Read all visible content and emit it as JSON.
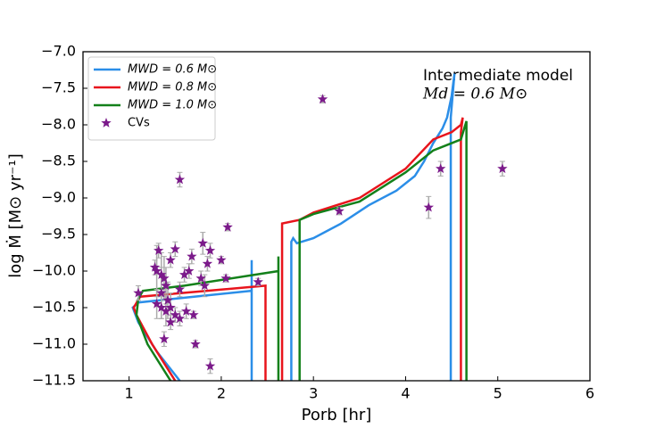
{
  "chart_data": {
    "type": "line",
    "xlabel": "Porb [hr]",
    "ylabel": "log Ṁ [M⊙ yr⁻¹]",
    "annotations": [
      "Intermediate model",
      "Md = 0.6 M⊙"
    ],
    "xlim": [
      0.5,
      6
    ],
    "ylim": [
      -11.5,
      -7
    ],
    "xticks": [
      1,
      2,
      3,
      4,
      5,
      6
    ],
    "yticks": [
      {
        "value": -11.5,
        "label": "−11.5"
      },
      {
        "value": -11,
        "label": "−11.0"
      },
      {
        "value": -10.5,
        "label": "−10.5"
      },
      {
        "value": -10,
        "label": "−10.0"
      },
      {
        "value": -9.5,
        "label": "−9.5"
      },
      {
        "value": -9,
        "label": "−9.0"
      },
      {
        "value": -8.5,
        "label": "−8.5"
      },
      {
        "value": -8,
        "label": "−8.0"
      },
      {
        "value": -7.5,
        "label": "−7.5"
      },
      {
        "value": -7,
        "label": "−7.0"
      }
    ],
    "legend": "upper left",
    "series": [
      {
        "name": "MWD = 0.6 M⊙",
        "color": "#2b8ee8",
        "x": [
          1.55,
          1.3,
          1.1,
          1.04,
          1.1,
          2.33,
          2.33,
          2.33,
          null,
          2.76,
          2.76,
          2.78,
          2.82,
          3.0,
          3.3,
          3.6,
          3.9,
          4.1,
          4.2,
          4.3,
          4.4,
          4.45,
          4.5,
          4.53,
          4.49,
          4.49
        ],
        "values": [
          -11.5,
          -11.1,
          -10.7,
          -10.5,
          -10.43,
          -10.27,
          -9.85,
          -11.5,
          null,
          -11.5,
          -9.6,
          -9.55,
          -9.62,
          -9.55,
          -9.35,
          -9.1,
          -8.9,
          -8.7,
          -8.5,
          -8.25,
          -8.05,
          -7.9,
          -7.6,
          -7.3,
          -7.9,
          -11.5
        ]
      },
      {
        "name": "MWD = 0.8 M⊙",
        "color": "#e8141c",
        "x": [
          1.5,
          1.25,
          1.08,
          1.05,
          1.12,
          2.48,
          2.48,
          null,
          2.66,
          2.66,
          2.85,
          3.0,
          3.5,
          4.0,
          4.3,
          4.5,
          4.6,
          4.62,
          4.6,
          4.6
        ],
        "values": [
          -11.5,
          -11.0,
          -10.6,
          -10.5,
          -10.35,
          -10.2,
          -11.5,
          null,
          -11.5,
          -9.35,
          -9.3,
          -9.2,
          -9.0,
          -8.6,
          -8.2,
          -8.1,
          -8.0,
          -7.9,
          -8.1,
          -11.5
        ]
      },
      {
        "name": "MWD = 1.0 M⊙",
        "color": "#13801a",
        "x": [
          1.45,
          1.2,
          1.08,
          1.1,
          1.15,
          1.6,
          2.62,
          2.62,
          2.62,
          null,
          2.85,
          2.85,
          3.0,
          3.5,
          4.0,
          4.3,
          4.6,
          4.66,
          4.66
        ],
        "values": [
          -11.5,
          -11.0,
          -10.6,
          -10.38,
          -10.27,
          -10.2,
          -10.0,
          -9.8,
          -11.5,
          null,
          -11.5,
          -9.3,
          -9.22,
          -9.05,
          -8.65,
          -8.35,
          -8.2,
          -7.95,
          -11.5
        ]
      }
    ],
    "scatter": {
      "name": "CVs",
      "color": "#7b1a8a",
      "x": [
        1.1,
        1.28,
        1.3,
        1.32,
        1.35,
        1.38,
        1.3,
        1.35,
        1.4,
        1.38,
        1.45,
        1.5,
        1.55,
        1.42,
        1.45,
        1.5,
        1.55,
        1.6,
        1.65,
        1.62,
        1.7,
        1.72,
        1.68,
        1.78,
        1.8,
        1.85,
        1.88,
        1.82,
        1.88,
        2.0,
        2.07,
        2.05,
        2.4,
        3.1,
        3.28,
        4.25,
        4.38,
        5.05,
        1.35,
        1.45,
        1.55,
        1.4
      ],
      "values": [
        -10.3,
        -9.95,
        -10.0,
        -9.72,
        -10.05,
        -10.1,
        -10.45,
        -10.5,
        -10.55,
        -10.93,
        -10.7,
        -10.6,
        -10.65,
        -10.4,
        -9.85,
        -9.7,
        -8.75,
        -10.05,
        -10.0,
        -10.55,
        -10.6,
        -11.0,
        -9.8,
        -10.1,
        -9.62,
        -9.9,
        -9.72,
        -10.2,
        -11.3,
        -9.85,
        -9.4,
        -10.1,
        -10.15,
        -7.65,
        -9.18,
        -9.13,
        -8.6,
        -8.6,
        -10.3,
        -10.5,
        -10.25,
        -10.2
      ],
      "errors": [
        0.1,
        0.1,
        0.35,
        0.1,
        0.3,
        0.3,
        0.2,
        0.15,
        0.2,
        0.1,
        0.1,
        0.1,
        0.1,
        0.25,
        0.1,
        0.1,
        0.1,
        0.1,
        0.1,
        0.1,
        0.05,
        0.05,
        0.1,
        0.1,
        0.15,
        0.1,
        0.1,
        0.15,
        0.1,
        0.05,
        0.05,
        0.05,
        0.05,
        0.05,
        0.05,
        0.15,
        0.1,
        0.1,
        0.35,
        0.2,
        0.1,
        0.25
      ]
    }
  }
}
